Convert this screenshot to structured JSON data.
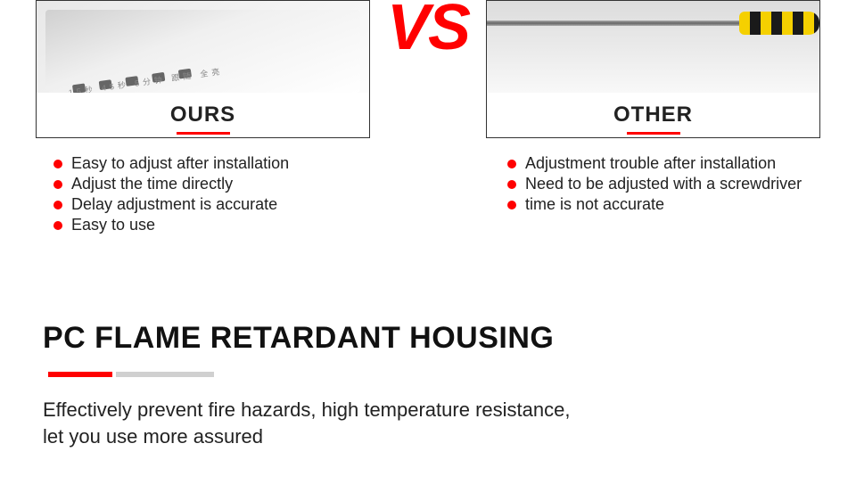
{
  "comparison": {
    "vs_label": "VS",
    "ours": {
      "label": "OURS",
      "bullets": [
        "Easy to adjust after installation",
        "Adjust the time directly",
        "Delay adjustment is accurate",
        "Easy to use"
      ],
      "dip_tiny_text": "15秒 45秒 5分钟 跟随 全亮"
    },
    "other": {
      "label": "OTHER",
      "bullets": [
        "Adjustment trouble after installation",
        "Need to be adjusted with a screwdriver",
        "time is not accurate"
      ]
    }
  },
  "section": {
    "title": "PC FLAME RETARDANT HOUSING",
    "desc_line1": "Effectively prevent fire hazards, high temperature resistance,",
    "desc_line2": "let you use more assured"
  },
  "colors": {
    "accent": "#ff0000",
    "text": "#222222",
    "gray": "#d0d0d0",
    "handle_yellow": "#f5d000",
    "handle_black": "#1a1a1a"
  }
}
